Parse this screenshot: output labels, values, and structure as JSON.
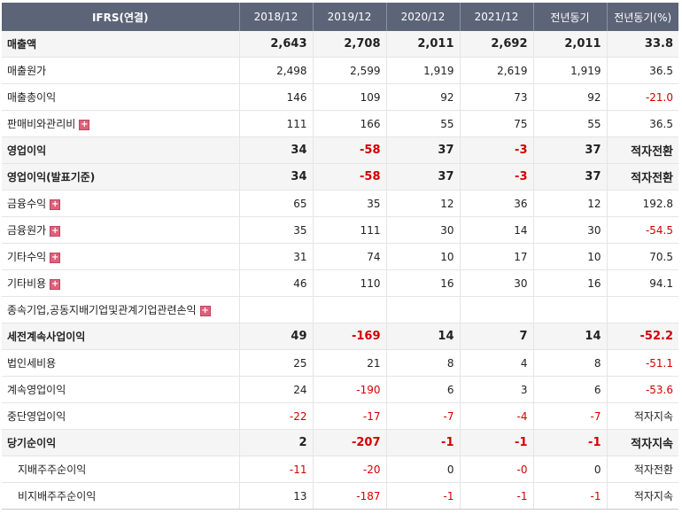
{
  "header": {
    "first": "IFRS(연결)",
    "cols": [
      "2018/12",
      "2019/12",
      "2020/12",
      "2021/12",
      "전년동기",
      "전년동기(%)"
    ]
  },
  "rows": [
    {
      "label": "매출액",
      "bold": true,
      "expand": false,
      "sub": false,
      "values": [
        "2,643",
        "2,708",
        "2,011",
        "2,692",
        "2,011",
        "33.8"
      ]
    },
    {
      "label": "매출원가",
      "bold": false,
      "expand": false,
      "sub": false,
      "values": [
        "2,498",
        "2,599",
        "1,919",
        "2,619",
        "1,919",
        "36.5"
      ]
    },
    {
      "label": "매출총이익",
      "bold": false,
      "expand": false,
      "sub": false,
      "values": [
        "146",
        "109",
        "92",
        "73",
        "92",
        "-21.0"
      ]
    },
    {
      "label": "판매비와관리비",
      "bold": false,
      "expand": true,
      "sub": false,
      "values": [
        "111",
        "166",
        "55",
        "75",
        "55",
        "36.5"
      ]
    },
    {
      "label": "영업이익",
      "bold": true,
      "expand": false,
      "sub": false,
      "values": [
        "34",
        "-58",
        "37",
        "-3",
        "37",
        "적자전환"
      ]
    },
    {
      "label": "영업이익(발표기준)",
      "bold": true,
      "expand": false,
      "sub": false,
      "values": [
        "34",
        "-58",
        "37",
        "-3",
        "37",
        "적자전환"
      ]
    },
    {
      "label": "금융수익",
      "bold": false,
      "expand": true,
      "sub": false,
      "values": [
        "65",
        "35",
        "12",
        "36",
        "12",
        "192.8"
      ]
    },
    {
      "label": "금융원가",
      "bold": false,
      "expand": true,
      "sub": false,
      "values": [
        "35",
        "111",
        "30",
        "14",
        "30",
        "-54.5"
      ]
    },
    {
      "label": "기타수익",
      "bold": false,
      "expand": true,
      "sub": false,
      "values": [
        "31",
        "74",
        "10",
        "17",
        "10",
        "70.5"
      ]
    },
    {
      "label": "기타비용",
      "bold": false,
      "expand": true,
      "sub": false,
      "values": [
        "46",
        "110",
        "16",
        "30",
        "16",
        "94.1"
      ]
    },
    {
      "label": "종속기업,공동지배기업및관계기업관련손익",
      "bold": false,
      "expand": true,
      "sub": false,
      "values": [
        "",
        "",
        "",
        "",
        "",
        ""
      ]
    },
    {
      "label": "세전계속사업이익",
      "bold": true,
      "expand": false,
      "sub": false,
      "values": [
        "49",
        "-169",
        "14",
        "7",
        "14",
        "-52.2"
      ]
    },
    {
      "label": "법인세비용",
      "bold": false,
      "expand": false,
      "sub": false,
      "values": [
        "25",
        "21",
        "8",
        "4",
        "8",
        "-51.1"
      ]
    },
    {
      "label": "계속영업이익",
      "bold": false,
      "expand": false,
      "sub": false,
      "values": [
        "24",
        "-190",
        "6",
        "3",
        "6",
        "-53.6"
      ]
    },
    {
      "label": "중단영업이익",
      "bold": false,
      "expand": false,
      "sub": false,
      "values": [
        "-22",
        "-17",
        "-7",
        "-4",
        "-7",
        "적자지속"
      ]
    },
    {
      "label": "당기순이익",
      "bold": true,
      "expand": false,
      "sub": false,
      "values": [
        "2",
        "-207",
        "-1",
        "-1",
        "-1",
        "적자지속"
      ]
    },
    {
      "label": "지배주주순이익",
      "bold": false,
      "expand": false,
      "sub": true,
      "values": [
        "-11",
        "-20",
        "0",
        "-0",
        "0",
        "적자전환"
      ]
    },
    {
      "label": "비지배주주순이익",
      "bold": false,
      "expand": false,
      "sub": true,
      "values": [
        "13",
        "-187",
        "-1",
        "-1",
        "-1",
        "적자지속"
      ]
    }
  ],
  "colors": {
    "header_bg": "#5c6478",
    "negative": "#d40000",
    "expand_icon": "#e0607a"
  },
  "icons": {
    "expand": "plus-icon"
  }
}
